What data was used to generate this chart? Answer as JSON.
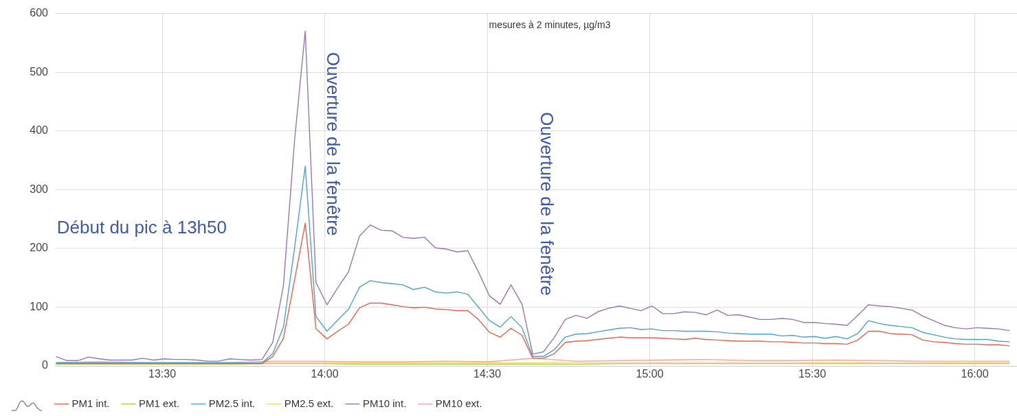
{
  "chart_data": {
    "type": "line",
    "title": "mesures à 2 minutes, µg/m3",
    "x": [
      13.173,
      13.207,
      13.24,
      13.273,
      13.307,
      13.34,
      13.373,
      13.407,
      13.44,
      13.473,
      13.507,
      13.54,
      13.573,
      13.607,
      13.64,
      13.673,
      13.707,
      13.74,
      13.773,
      13.807,
      13.84,
      13.873,
      13.907,
      13.94,
      13.973,
      14.007,
      14.04,
      14.073,
      14.107,
      14.14,
      14.173,
      14.207,
      14.24,
      14.273,
      14.307,
      14.34,
      14.373,
      14.407,
      14.44,
      14.473,
      14.507,
      14.54,
      14.573,
      14.607,
      14.64,
      14.673,
      14.707,
      14.74,
      14.773,
      14.807,
      14.84,
      14.873,
      14.907,
      14.94,
      14.973,
      15.007,
      15.04,
      15.073,
      15.107,
      15.14,
      15.173,
      15.207,
      15.24,
      15.273,
      15.307,
      15.34,
      15.373,
      15.407,
      15.44,
      15.473,
      15.507,
      15.54,
      15.573,
      15.607,
      15.64,
      15.673,
      15.707,
      15.74,
      15.773,
      15.807,
      15.84,
      15.873,
      15.907,
      15.94,
      15.973,
      16.007,
      16.04,
      16.073,
      16.107
    ],
    "series": [
      {
        "name": "PM1 int.",
        "color": "#e8604c",
        "values": [
          4,
          4,
          4,
          4,
          4,
          4,
          4,
          4,
          4,
          4,
          4,
          4,
          4,
          4,
          4,
          4,
          4,
          4,
          4,
          4,
          16,
          47,
          146,
          243,
          63,
          46,
          59,
          71,
          99,
          107,
          107,
          104,
          101,
          99,
          100,
          97,
          96,
          94,
          94,
          79,
          57,
          49,
          64,
          52,
          13,
          13,
          21,
          40,
          42,
          43,
          45,
          47,
          49,
          48,
          48,
          48,
          47,
          46,
          45,
          47,
          45,
          44,
          43,
          42,
          42,
          42,
          41,
          41,
          40,
          39,
          39,
          38,
          38,
          37,
          44,
          59,
          59,
          55,
          54,
          53,
          44,
          41,
          40,
          38,
          37,
          37,
          36,
          36,
          34
        ]
      },
      {
        "name": "PM1 ext.",
        "color": "#a5cf4c",
        "x": [
          13.173,
          13.307,
          13.44,
          13.573,
          13.707,
          13.84,
          13.973,
          14.107,
          14.24,
          14.373,
          14.507,
          14.64,
          14.773,
          14.907,
          15.04,
          15.173,
          15.307,
          15.44,
          15.573,
          15.707,
          15.84,
          15.973,
          16.107
        ],
        "values": [
          3,
          3,
          3,
          3,
          3,
          4,
          4,
          3,
          3,
          3,
          3,
          3,
          3,
          4,
          4,
          4,
          4,
          4,
          4,
          4,
          4,
          4,
          4
        ]
      },
      {
        "name": "PM2.5 int.",
        "color": "#4e9fd1",
        "values": [
          5,
          5,
          5,
          5,
          5,
          5,
          5,
          5,
          5,
          5,
          5,
          5,
          5,
          5,
          5,
          5,
          5,
          5,
          5,
          5,
          21,
          66,
          200,
          340,
          84,
          59,
          78,
          96,
          134,
          145,
          142,
          140,
          138,
          130,
          134,
          126,
          124,
          126,
          122,
          100,
          77,
          66,
          84,
          65,
          16,
          16,
          28,
          49,
          54,
          55,
          58,
          61,
          64,
          65,
          62,
          63,
          60,
          60,
          59,
          59,
          59,
          58,
          56,
          55,
          54,
          54,
          54,
          51,
          52,
          49,
          50,
          47,
          50,
          46,
          55,
          77,
          72,
          69,
          67,
          65,
          57,
          53,
          49,
          46,
          45,
          45,
          45,
          42,
          41
        ]
      },
      {
        "name": "PM2.5 ext.",
        "color": "#f9d66b",
        "x": [
          13.573,
          13.707,
          13.84,
          13.973,
          14.107,
          14.24,
          14.373,
          14.507,
          14.64,
          14.773,
          14.907,
          15.04,
          15.173,
          15.307,
          15.44,
          15.573,
          15.707,
          15.84,
          15.973,
          16.107
        ],
        "values": [
          5,
          5,
          6,
          6,
          5,
          5,
          5,
          5,
          5,
          6,
          6,
          6,
          6,
          6,
          6,
          5,
          6,
          6,
          5,
          6
        ]
      },
      {
        "name": "PM10 int.",
        "color": "#9575b5",
        "values": [
          16,
          9,
          9,
          15,
          12,
          10,
          10,
          10,
          13,
          10,
          12,
          11,
          11,
          10,
          8,
          8,
          12,
          11,
          10,
          11,
          40,
          137,
          383,
          570,
          142,
          104,
          133,
          160,
          221,
          240,
          231,
          230,
          219,
          217,
          219,
          201,
          199,
          194,
          196,
          160,
          119,
          105,
          138,
          105,
          20,
          24,
          49,
          79,
          86,
          81,
          92,
          98,
          102,
          98,
          94,
          102,
          89,
          89,
          92,
          91,
          87,
          95,
          86,
          87,
          83,
          79,
          79,
          81,
          79,
          74,
          74,
          72,
          71,
          69,
          86,
          104,
          102,
          101,
          98,
          95,
          85,
          77,
          69,
          65,
          63,
          65,
          64,
          63,
          60
        ]
      },
      {
        "name": "PM10 ext.",
        "color": "#f4a3a3",
        "x": [
          13.173,
          13.307,
          13.44,
          13.573,
          13.707,
          13.84,
          13.973,
          14.107,
          14.24,
          14.373,
          14.507,
          14.64,
          14.773,
          14.907,
          15.04,
          15.173,
          15.307,
          15.44,
          15.573,
          15.707,
          15.84,
          15.973,
          16.107
        ],
        "values": [
          6,
          7,
          6,
          6,
          6,
          8,
          8,
          7,
          7,
          8,
          7,
          13,
          8,
          9,
          10,
          11,
          9,
          9,
          10,
          9,
          8,
          8,
          8
        ]
      }
    ],
    "xlim": [
      13.17,
      16.13
    ],
    "xticks": [
      {
        "value": 13.5,
        "label": "13:30"
      },
      {
        "value": 14,
        "label": "14:00"
      },
      {
        "value": 14.5,
        "label": "14:30"
      },
      {
        "value": 15,
        "label": "15:00"
      },
      {
        "value": 15.5,
        "label": "15:30"
      },
      {
        "value": 16,
        "label": "16:00"
      }
    ],
    "ylim": [
      0,
      600
    ],
    "yticks": [
      0,
      100,
      200,
      300,
      400,
      500,
      600
    ],
    "grid": true,
    "legend": "bottom left",
    "marker": "none",
    "annotations": [
      "Début du pic à 13h50",
      "Ouverture de la fenêtre",
      "Ouverture de la fenêtre"
    ]
  }
}
